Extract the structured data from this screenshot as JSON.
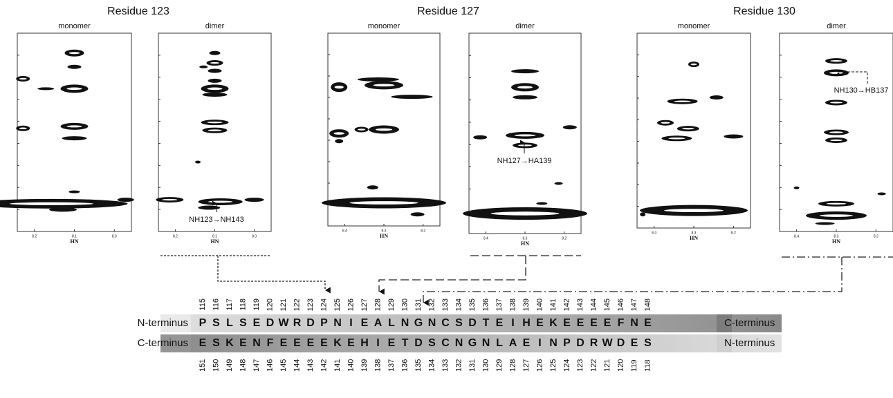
{
  "figure": {
    "groups": [
      {
        "title": "Residue 123",
        "panels": [
          {
            "label": "monomer",
            "x_label": "HN",
            "x_ticks": [
              "8.2",
              "8.1",
              "8.0"
            ]
          },
          {
            "label": "dimer",
            "x_label": "HN",
            "x_ticks": [
              "8.2",
              "8.1",
              "8.0"
            ],
            "annotation": "NH123→NH143"
          }
        ]
      },
      {
        "title": "Residue 127",
        "panels": [
          {
            "label": "monomer",
            "x_label": "HN",
            "x_ticks": [
              "8.4",
              "8.3",
              "8.2"
            ]
          },
          {
            "label": "dimer",
            "x_label": "HN",
            "x_ticks": [
              "8.4",
              "8.3",
              "8.2"
            ],
            "annotation": "NH127→HA139"
          }
        ]
      },
      {
        "title": "Residue 130",
        "panels": [
          {
            "label": "monomer",
            "x_label": "HN",
            "x_ticks": [
              "8.4",
              "8.3",
              "8.2"
            ]
          },
          {
            "label": "dimer",
            "x_label": "HN",
            "x_ticks": [
              "8.4",
              "8.3",
              "8.2"
            ],
            "annotation": "NH130→HB137"
          }
        ]
      }
    ],
    "sequence": {
      "top": {
        "left_label": "N-terminus",
        "right_label": "C-terminus",
        "numbers": [
          115,
          116,
          117,
          118,
          119,
          120,
          121,
          122,
          123,
          124,
          125,
          126,
          127,
          128,
          129,
          130,
          131,
          132,
          133,
          134,
          135,
          136,
          137,
          138,
          139,
          140,
          141,
          142,
          143,
          144,
          145,
          146,
          147,
          148
        ],
        "residues": [
          "P",
          "S",
          "L",
          "S",
          "E",
          "D",
          "W",
          "R",
          "D",
          "P",
          "N",
          "I",
          "E",
          "A",
          "L",
          "N",
          "G",
          "N",
          "C",
          "S",
          "D",
          "T",
          "E",
          "I",
          "H",
          "E",
          "K",
          "E",
          "E",
          "E",
          "E",
          "F",
          "N",
          "E"
        ]
      },
      "bottom": {
        "left_label": "C-terminus",
        "right_label": "N-terminus",
        "numbers": [
          151,
          150,
          149,
          148,
          147,
          146,
          145,
          144,
          143,
          142,
          141,
          140,
          139,
          138,
          137,
          136,
          135,
          134,
          133,
          132,
          131,
          130,
          129,
          128,
          127,
          126,
          125,
          124,
          123,
          122,
          121,
          120,
          119,
          118
        ],
        "residues": [
          "E",
          "S",
          "K",
          "E",
          "N",
          "F",
          "E",
          "E",
          "E",
          "E",
          "K",
          "E",
          "H",
          "I",
          "E",
          "T",
          "D",
          "S",
          "C",
          "N",
          "G",
          "N",
          "L",
          "A",
          "E",
          "I",
          "N",
          "P",
          "D",
          "R",
          "W",
          "D",
          "E",
          "S"
        ]
      }
    }
  }
}
